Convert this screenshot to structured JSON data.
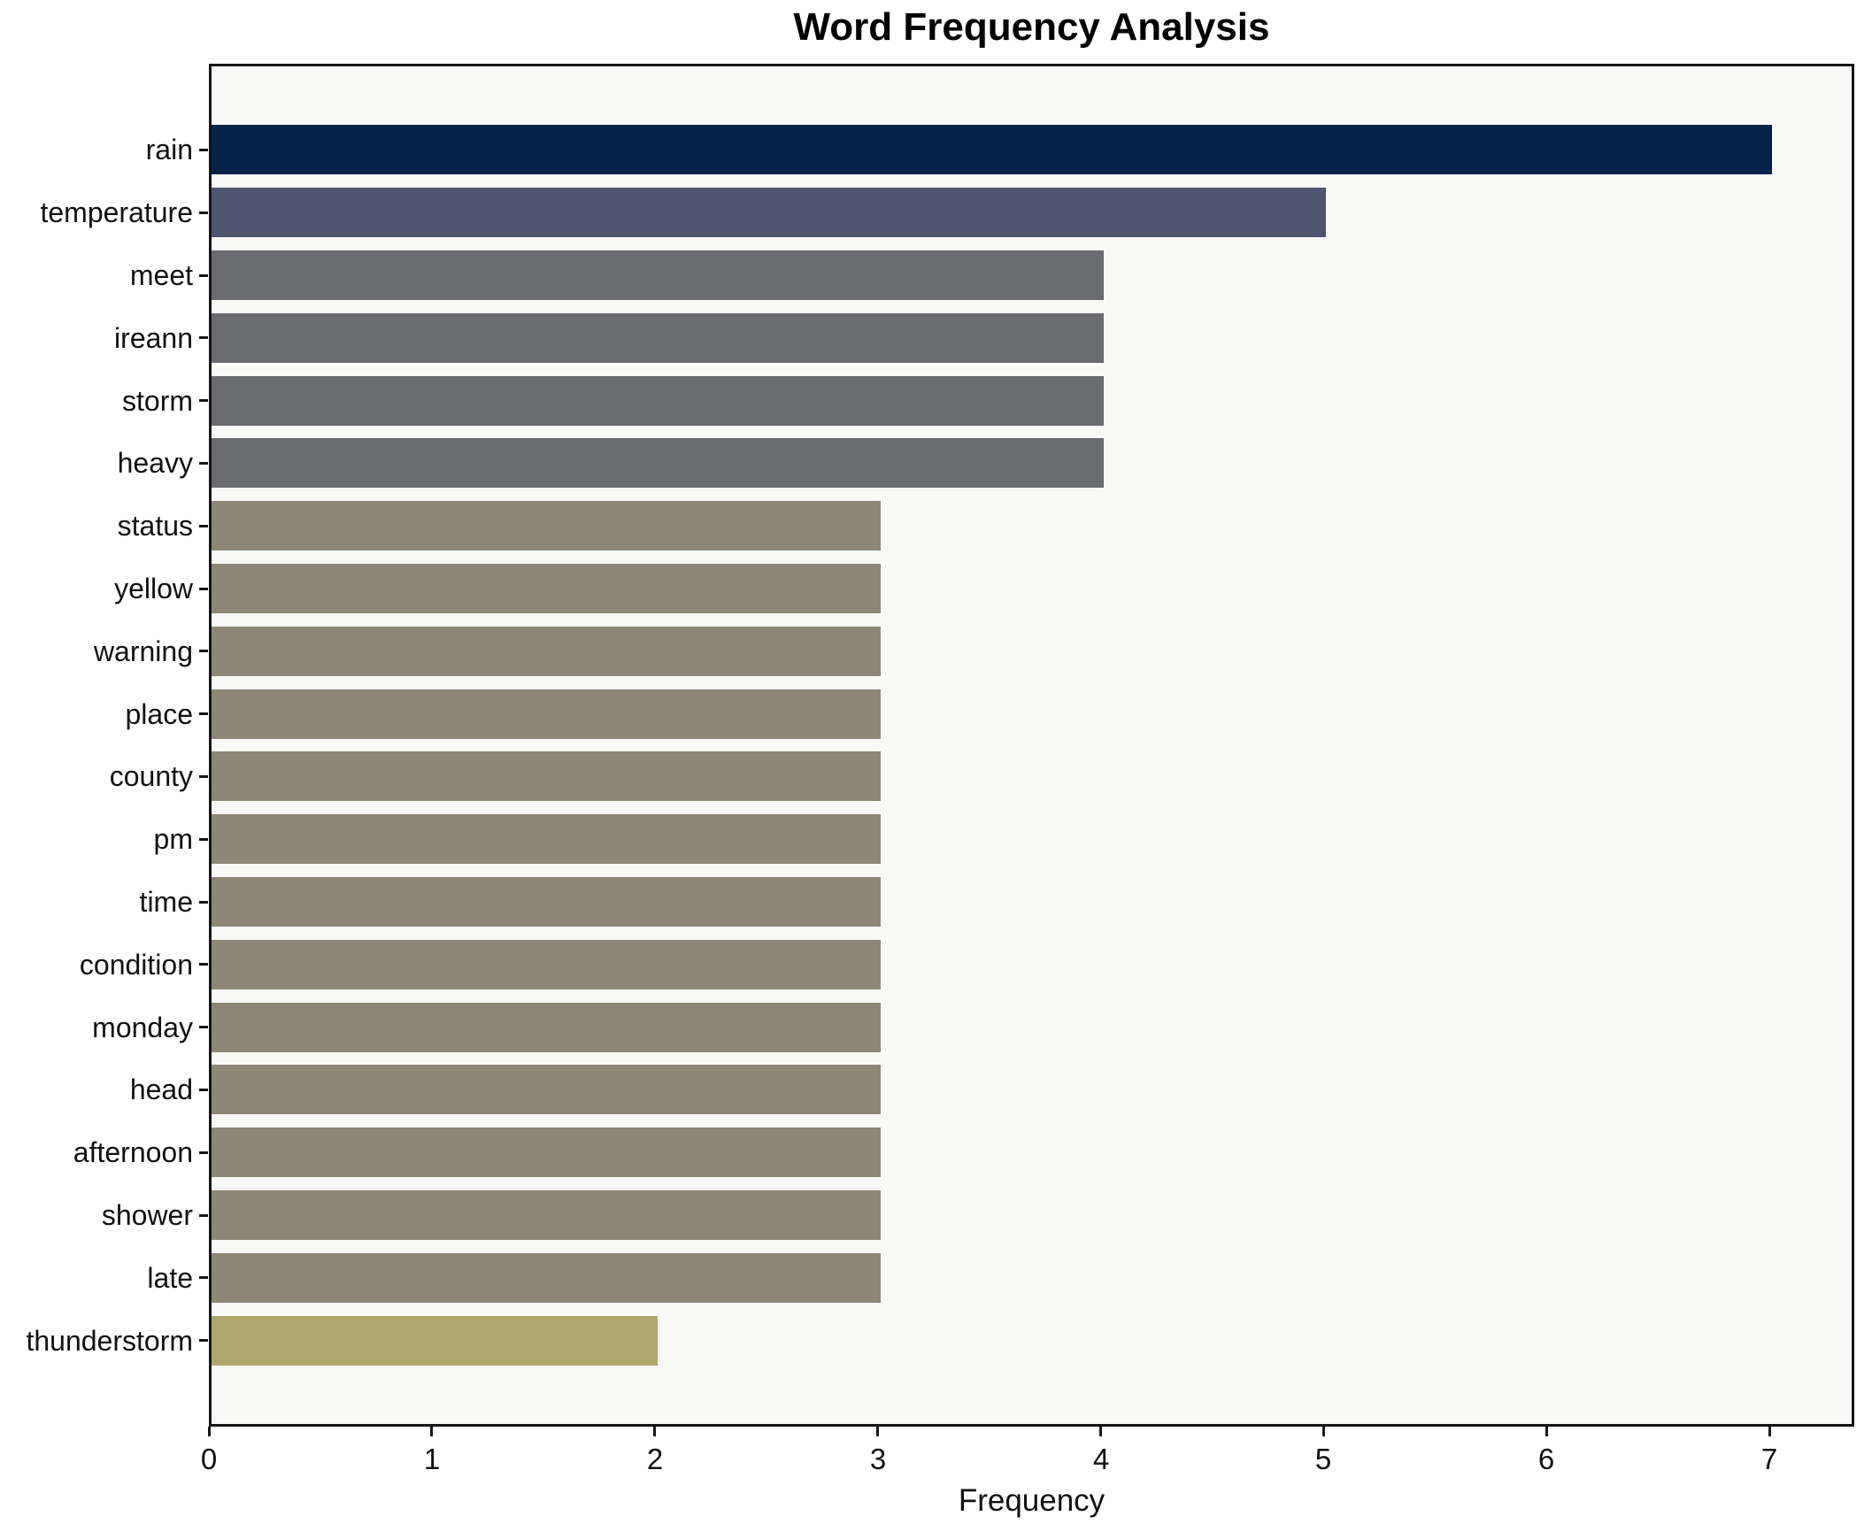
{
  "figure": {
    "title": "Word Frequency Analysis",
    "xlabel": "Frequency"
  },
  "chart_data": {
    "type": "bar",
    "orientation": "horizontal",
    "title": "Word Frequency Analysis",
    "xlabel": "Frequency",
    "ylabel": "",
    "categories": [
      "rain",
      "temperature",
      "meet",
      "ireann",
      "storm",
      "heavy",
      "status",
      "yellow",
      "warning",
      "place",
      "county",
      "pm",
      "time",
      "condition",
      "monday",
      "head",
      "afternoon",
      "shower",
      "late",
      "thunderstorm"
    ],
    "values": [
      7,
      5,
      4,
      4,
      4,
      4,
      3,
      3,
      3,
      3,
      3,
      3,
      3,
      3,
      3,
      3,
      3,
      3,
      3,
      2
    ],
    "bar_colors": [
      "#04224a",
      "#4d566e",
      "#6b6c70",
      "#6b6c70",
      "#6b6c70",
      "#6b6c70",
      "#8e8776",
      "#8e8776",
      "#8e8776",
      "#8e8776",
      "#8e8776",
      "#8e8776",
      "#8e8776",
      "#8e8776",
      "#8e8776",
      "#8e8776",
      "#8e8776",
      "#8e8776",
      "#8e8776",
      "#b1a66b"
    ],
    "x_ticks": [
      0,
      1,
      2,
      3,
      4,
      5,
      6,
      7
    ],
    "xlim": [
      0,
      7.38
    ],
    "grid": false,
    "legend": null,
    "plot_background": "#f8f8f7",
    "value_color_map": {
      "7": "#04224a",
      "5": "#4d566e",
      "4": "#6b6c70",
      "3": "#8e8776",
      "2": "#b1a66b"
    }
  }
}
